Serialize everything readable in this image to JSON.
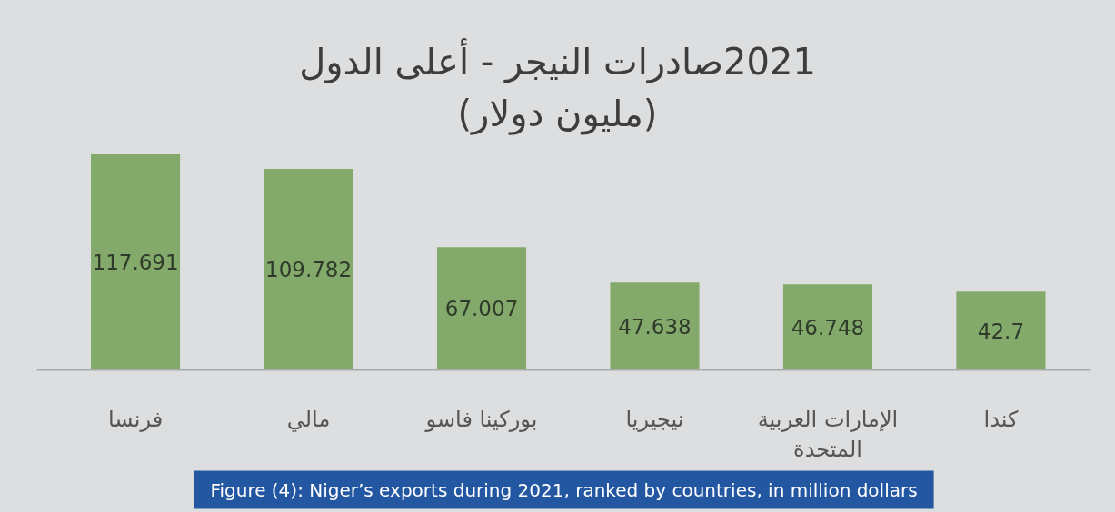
{
  "chart_data": {
    "type": "bar",
    "title": "2021صادرات النيجر - أعلى الدول",
    "subtitle": "(مليون دولار)",
    "categories": [
      "فرنسا",
      "مالي",
      "بوركينا فاسو",
      "نيجيريا",
      "الإمارات العربية المتحدة",
      "كندا"
    ],
    "values": [
      117.691,
      109.782,
      67.007,
      47.638,
      46.748,
      42.7
    ],
    "color": "#83a96b",
    "data_labels": true,
    "tick_labels": "x",
    "annotations": [
      "Figure (4): Niger’s exports during 2021, ranked by countries, in million dollars"
    ]
  }
}
